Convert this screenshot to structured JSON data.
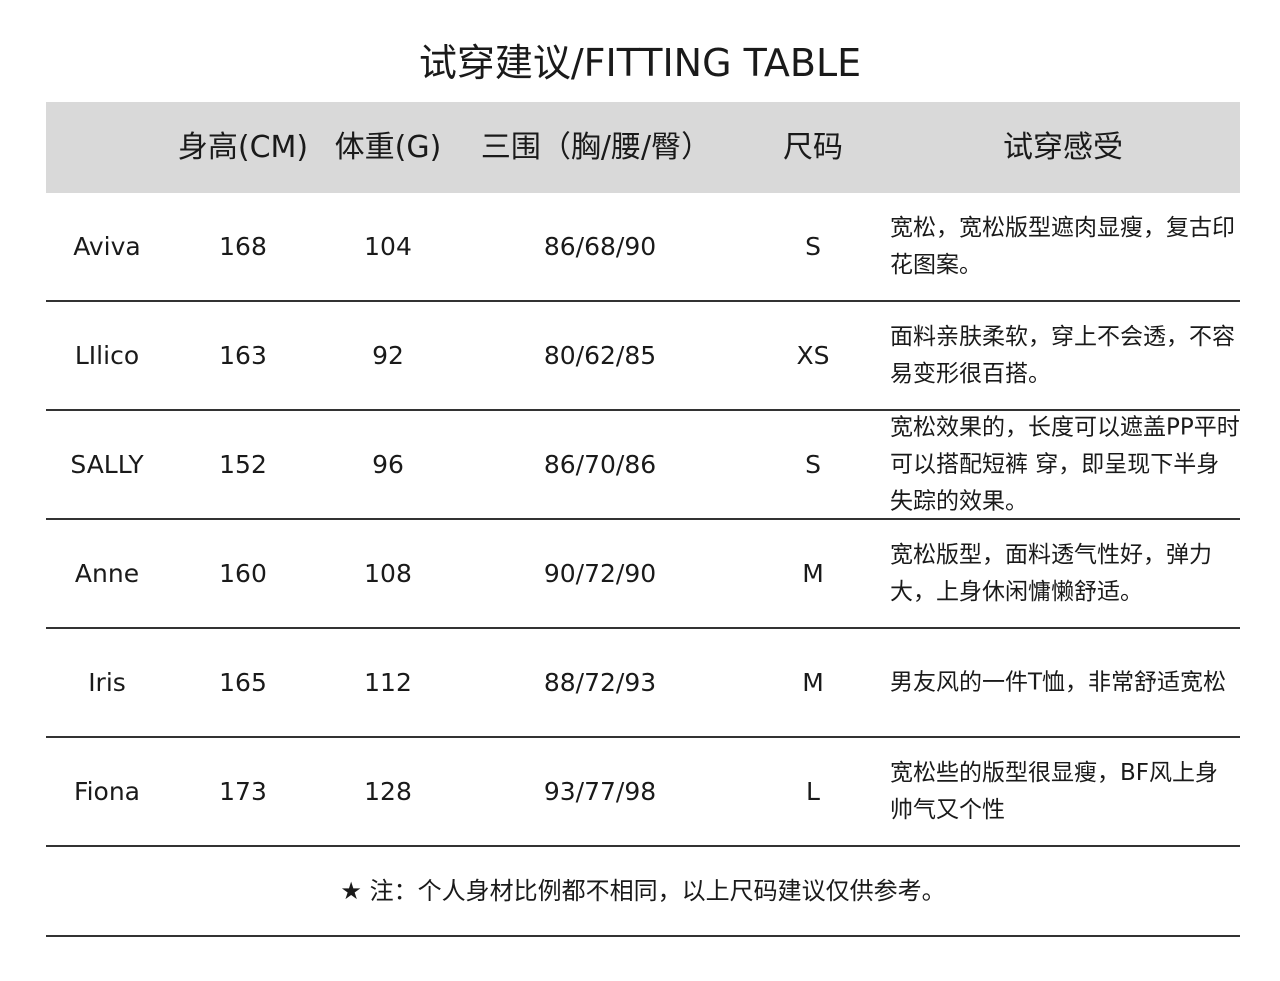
{
  "title": "试穿建议/FITTING TABLE",
  "headers": [
    "",
    "身高(CM)",
    "体重(G)",
    "三围（胸/腰/臀）",
    "尺码",
    "试穿感受"
  ],
  "rows": [
    {
      "name": "Aviva",
      "height": "168",
      "weight": "104",
      "measurements": "86/68/90",
      "size": "S",
      "feedback": "宽松，宽松版型遮肉显瘦，复古印花图案。"
    },
    {
      "name": "LIlico",
      "height": "163",
      "weight": "92",
      "measurements": "80/62/85",
      "size": "XS",
      "feedback": "面料亲肤柔软，穿上不会透，不容易变形很百搭。"
    },
    {
      "name": "SALLY",
      "height": "152",
      "weight": "96",
      "measurements": "86/70/86",
      "size": "S",
      "feedback": "宽松效果的，长度可以遮盖PP平时可以搭配短裤 穿，即呈现下半身失踪的效果。"
    },
    {
      "name": "Anne",
      "height": "160",
      "weight": "108",
      "measurements": "90/72/90",
      "size": "M",
      "feedback": "宽松版型，面料透气性好，弹力大，上身休闲慵懒舒适。"
    },
    {
      "name": "Iris",
      "height": "165",
      "weight": "112",
      "measurements": "88/72/93",
      "size": "M",
      "feedback": "男友风的一件T恤，非常舒适宽松"
    },
    {
      "name": "Fiona",
      "height": "173",
      "weight": "128",
      "measurements": "93/77/98",
      "size": "L",
      "feedback": "宽松些的版型很显瘦，BF风上身帅气又个性"
    }
  ],
  "note": "★ 注：个人身材比例都不相同，以上尺码建议仅供参考。"
}
